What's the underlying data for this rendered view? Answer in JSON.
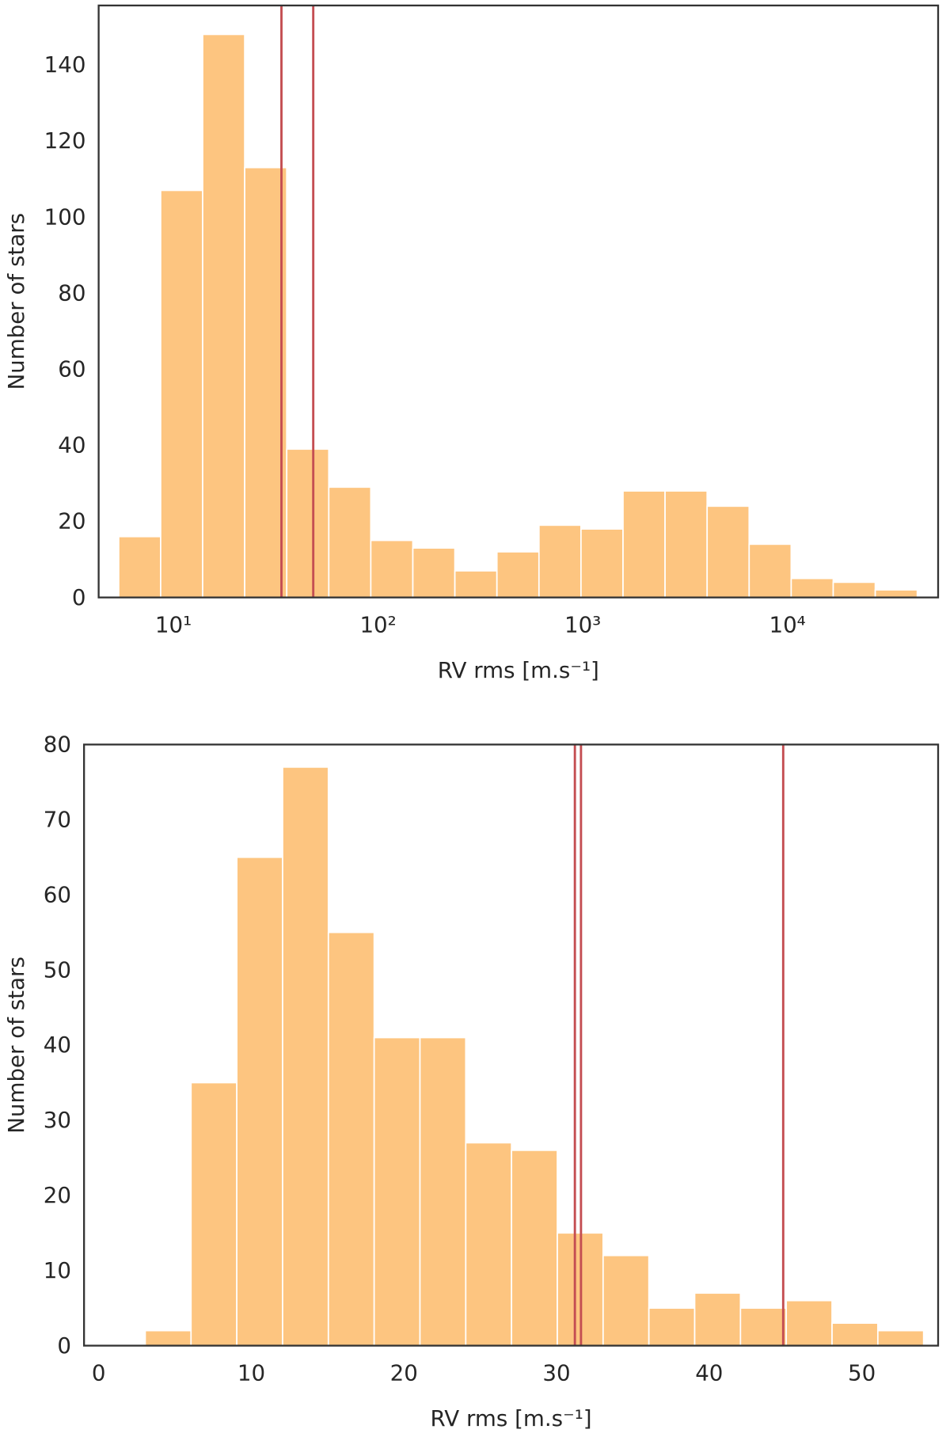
{
  "chart_data": [
    {
      "type": "histogram",
      "xscale": "log",
      "bins": [
        5.4,
        8.66,
        13.89,
        22.29,
        35.77,
        57.41,
        92.1,
        147.8,
        237.2,
        380.7,
        611,
        980,
        1573,
        2524,
        4052,
        6501,
        10433,
        16743,
        26871,
        43114
      ],
      "values": [
        16,
        107,
        148,
        113,
        39,
        29,
        15,
        13,
        7,
        12,
        19,
        18,
        28,
        28,
        24,
        14,
        5,
        4,
        2
      ],
      "color": "#fdc580",
      "vlines": [
        33.7,
        48.2
      ],
      "vline_color": "#c44e52",
      "xlim": [
        4.31,
        54500
      ],
      "ylim": [
        0,
        155.6
      ],
      "xticks": [
        {
          "value": 10,
          "label": "10¹"
        },
        {
          "value": 100,
          "label": "10²"
        },
        {
          "value": 1000,
          "label": "10³"
        },
        {
          "value": 10000,
          "label": "10⁴"
        }
      ],
      "yticks": [
        0,
        20,
        40,
        60,
        80,
        100,
        120,
        140
      ],
      "xlabel": "RV rms [m.s⁻¹]",
      "ylabel": "Number of stars"
    },
    {
      "type": "histogram",
      "bins": [
        3.05,
        6.05,
        9.05,
        12.05,
        15.05,
        18.05,
        21.05,
        24.05,
        27.05,
        30.05,
        33.05,
        36.05,
        39.05,
        42.05,
        45.05,
        48.05,
        51.05,
        54.05
      ],
      "values": [
        2,
        35,
        65,
        77,
        55,
        41,
        41,
        27,
        26,
        15,
        12,
        5,
        7,
        5,
        6,
        3,
        2
      ],
      "color": "#fdc580",
      "vlines": [
        31.2,
        31.6,
        44.85
      ],
      "vline_color": "#c44e52",
      "xlim": [
        -0.96,
        55.0
      ],
      "ylim": [
        0,
        80
      ],
      "xticks": [
        0,
        10,
        20,
        30,
        40,
        50
      ],
      "yticks": [
        0,
        10,
        20,
        30,
        40,
        50,
        60,
        70,
        80
      ],
      "xlabel": "RV rms [m.s⁻¹]",
      "ylabel": "Number of stars"
    }
  ]
}
